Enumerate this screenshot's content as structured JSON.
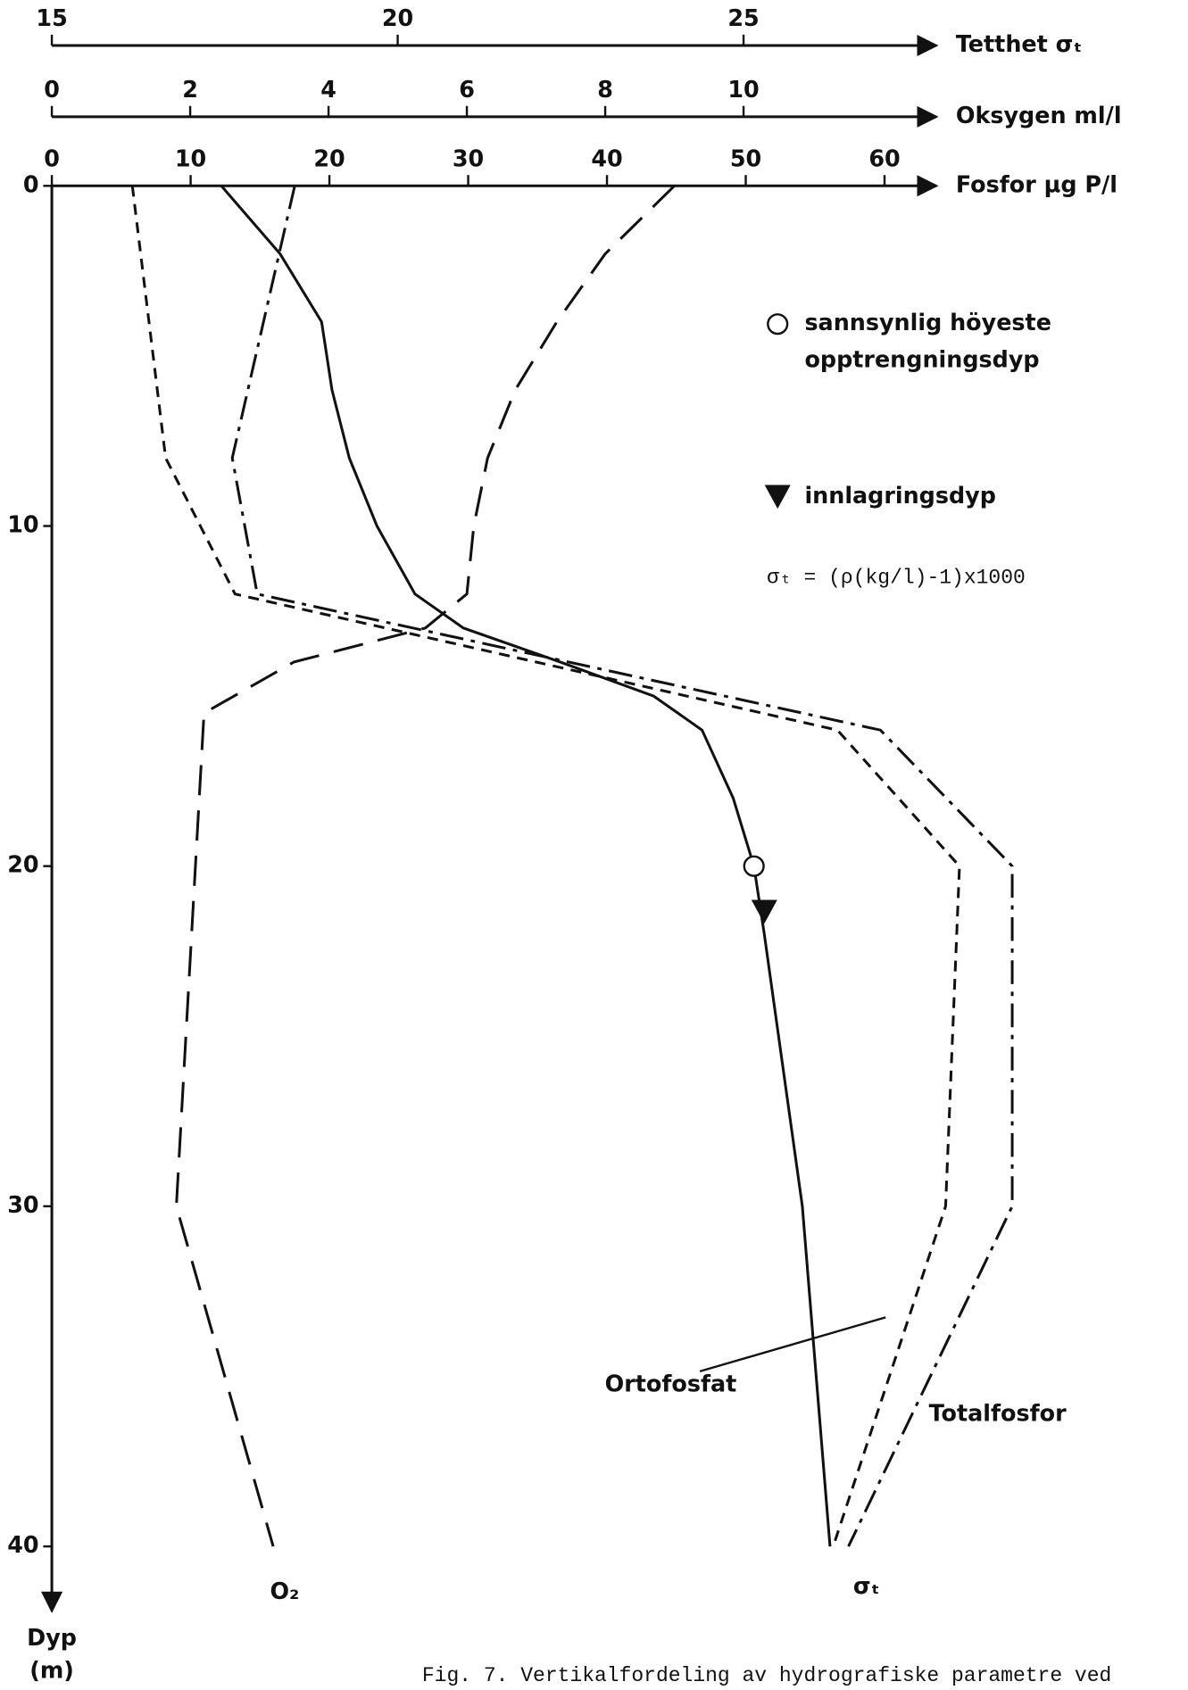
{
  "chart_data": {
    "type": "line",
    "caption": "Fig. 7. Vertikalfordeling av hydrografiske parametre ved",
    "y_label": [
      "Dyp",
      "(m)"
    ],
    "ylim": [
      0,
      41.9
    ],
    "yticks": [
      0,
      10,
      20,
      30,
      40
    ],
    "xaxes": [
      {
        "label": "Tetthet σₜ",
        "xlim": [
          15,
          27.6
        ],
        "xticks": [
          15,
          20,
          25
        ]
      },
      {
        "label": "Oksygen ml/l",
        "xlim": [
          0,
          12.6
        ],
        "xticks": [
          0,
          2,
          4,
          6,
          8,
          10
        ]
      },
      {
        "label": "Fosfor µg P/l",
        "xlim": [
          0,
          62.8
        ],
        "xticks": [
          0,
          10,
          20,
          30,
          40,
          50,
          60
        ]
      }
    ],
    "series": [
      {
        "name": "O₂",
        "xaxis": 1,
        "dash": "long",
        "y": [
          0,
          2,
          4,
          6,
          8,
          10,
          12,
          13,
          14,
          15.5,
          30,
          40
        ],
        "x": [
          9.0,
          8.0,
          7.3,
          6.7,
          6.3,
          6.1,
          6.0,
          5.4,
          3.5,
          2.2,
          1.8,
          3.2
        ]
      },
      {
        "name": "Ortofosfat",
        "xaxis": 2,
        "dash": "short",
        "y": [
          0,
          8,
          12,
          16,
          20,
          30,
          40
        ],
        "x": [
          5.8,
          8.2,
          13.2,
          56.6,
          65.4,
          64.4,
          56.3
        ]
      },
      {
        "name": "Totalfosfor",
        "xaxis": 2,
        "dash": "dashdot",
        "y": [
          0,
          8,
          12,
          16,
          20,
          30,
          40
        ],
        "x": [
          17.5,
          13.0,
          14.8,
          59.7,
          69.2,
          69.2,
          57.4
        ]
      },
      {
        "name": "σₜ",
        "xaxis": 0,
        "dash": "solid",
        "y": [
          0,
          2,
          4,
          6,
          8,
          10,
          12,
          13,
          14,
          15,
          16,
          18,
          20,
          22,
          30,
          40
        ],
        "x": [
          17.45,
          18.3,
          18.9,
          19.05,
          19.3,
          19.7,
          20.25,
          20.95,
          22.35,
          23.7,
          24.4,
          24.85,
          25.15,
          25.3,
          25.85,
          26.25
        ]
      }
    ],
    "markers": [
      {
        "label": [
          "sannsynlig höyeste",
          "opptrengningsdyp"
        ],
        "symbol": "circle",
        "xaxis": 0,
        "x": 25.15,
        "y": 20
      },
      {
        "label": [
          "innlagringsdyp"
        ],
        "symbol": "triangle",
        "xaxis": 0,
        "x": 25.3,
        "y": 21.5
      }
    ],
    "formula": "σₜ = (ρ(kg/l)-1)x1000"
  }
}
